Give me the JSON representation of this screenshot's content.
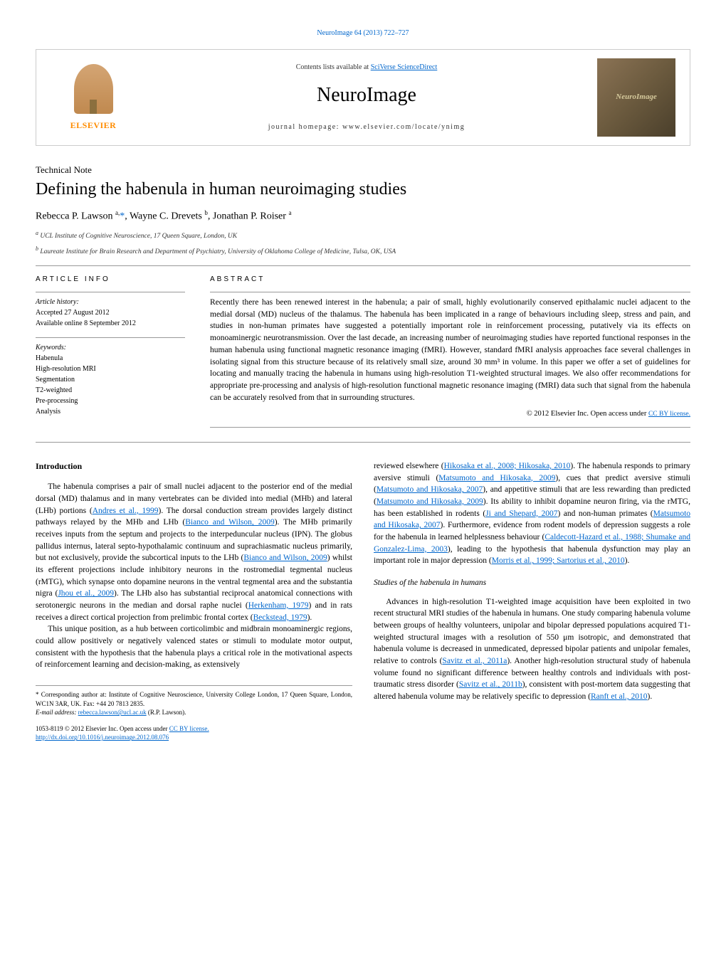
{
  "colors": {
    "link": "#0066cc",
    "text": "#000000",
    "bg": "#ffffff",
    "border": "#999999",
    "orange": "#ff8c00"
  },
  "header": {
    "citation": "NeuroImage 64 (2013) 722–727",
    "publisher_name": "ELSEVIER",
    "contents_line_prefix": "Contents lists available at ",
    "contents_line_link": "SciVerse ScienceDirect",
    "journal_title": "NeuroImage",
    "homepage_prefix": "journal homepage: ",
    "homepage_url": "www.elsevier.com/locate/ynimg",
    "cover_label": "NeuroImage"
  },
  "article": {
    "type": "Technical Note",
    "title": "Defining the habenula in human neuroimaging studies",
    "authors_html": "Rebecca P. Lawson <sup>a,</sup><span class='star'>*</span>, Wayne C. Drevets <sup>b</sup>, Jonathan P. Roiser <sup>a</sup>",
    "affiliations": [
      "a UCL Institute of Cognitive Neuroscience, 17 Queen Square, London, UK",
      "b Laureate Institute for Brain Research and Department of Psychiatry, University of Oklahoma College of Medicine, Tulsa, OK, USA"
    ]
  },
  "info": {
    "heading": "ARTICLE INFO",
    "history_label": "Article history:",
    "accepted": "Accepted 27 August 2012",
    "online": "Available online 8 September 2012",
    "keywords_label": "Keywords:",
    "keywords": [
      "Habenula",
      "High-resolution MRI",
      "Segmentation",
      "T2-weighted",
      "Pre-processing",
      "Analysis"
    ]
  },
  "abstract": {
    "heading": "ABSTRACT",
    "text": "Recently there has been renewed interest in the habenula; a pair of small, highly evolutionarily conserved epithalamic nuclei adjacent to the medial dorsal (MD) nucleus of the thalamus. The habenula has been implicated in a range of behaviours including sleep, stress and pain, and studies in non-human primates have suggested a potentially important role in reinforcement processing, putatively via its effects on monoaminergic neurotransmission. Over the last decade, an increasing number of neuroimaging studies have reported functional responses in the human habenula using functional magnetic resonance imaging (fMRI). However, standard fMRI analysis approaches face several challenges in isolating signal from this structure because of its relatively small size, around 30 mm³ in volume. In this paper we offer a set of guidelines for locating and manually tracing the habenula in humans using high-resolution T1-weighted structural images. We also offer recommendations for appropriate pre-processing and analysis of high-resolution functional magnetic resonance imaging (fMRI) data such that signal from the habenula can be accurately resolved from that in surrounding structures.",
    "copyright": "© 2012 Elsevier Inc.",
    "license_prefix": "Open access under ",
    "license_link": "CC BY license."
  },
  "body": {
    "intro_heading": "Introduction",
    "col1_p1_pre": "The habenula comprises a pair of small nuclei adjacent to the posterior end of the medial dorsal (MD) thalamus and in many vertebrates can be divided into medial (MHb) and lateral (LHb) portions (",
    "col1_p1_ref1": "Andres et al., 1999",
    "col1_p1_mid1": "). The dorsal conduction stream provides largely distinct pathways relayed by the MHb and LHb (",
    "col1_p1_ref2": "Bianco and Wilson, 2009",
    "col1_p1_mid2": "). The MHb primarily receives inputs from the septum and projects to the interpeduncular nucleus (IPN). The globus pallidus internus, lateral septo-hypothalamic continuum and suprachiasmatic nucleus primarily, but not exclusively, provide the subcortical inputs to the LHb (",
    "col1_p1_ref3": "Bianco and Wilson, 2009",
    "col1_p1_mid3": ") whilst its efferent projections include inhibitory neurons in the rostromedial tegmental nucleus (rMTG), which synapse onto dopamine neurons in the ventral tegmental area and the substantia nigra (",
    "col1_p1_ref4": "Jhou et al., 2009",
    "col1_p1_mid4": "). The LHb also has substantial reciprocal anatomical connections with serotonergic neurons in the median and dorsal raphe nuclei (",
    "col1_p1_ref5": "Herkenham, 1979",
    "col1_p1_mid5": ") and in rats receives a direct cortical projection from prelimbic frontal cortex (",
    "col1_p1_ref6": "Beckstead, 1979",
    "col1_p1_end": ").",
    "col1_p2": "This unique position, as a hub between corticolimbic and midbrain monoaminergic regions, could allow positively or negatively valenced states or stimuli to modulate motor output, consistent with the hypothesis that the habenula plays a critical role in the motivational aspects of reinforcement learning and decision-making, as extensively",
    "col2_p1_pre": "reviewed elsewhere (",
    "col2_p1_ref1": "Hikosaka et al., 2008; Hikosaka, 2010",
    "col2_p1_mid1": "). The habenula responds to primary aversive stimuli (",
    "col2_p1_ref2": "Matsumoto and Hikosaka, 2009",
    "col2_p1_mid2": "), cues that predict aversive stimuli (",
    "col2_p1_ref3": "Matsumoto and Hikosaka, 2007",
    "col2_p1_mid3": "), and appetitive stimuli that are less rewarding than predicted (",
    "col2_p1_ref4": "Matsumoto and Hikosaka, 2009",
    "col2_p1_mid4": "). Its ability to inhibit dopamine neuron firing, via the rMTG, has been established in rodents (",
    "col2_p1_ref5": "Ji and Shepard, 2007",
    "col2_p1_mid5": ") and non-human primates (",
    "col2_p1_ref6": "Matsumoto and Hikosaka, 2007",
    "col2_p1_mid6": "). Furthermore, evidence from rodent models of depression suggests a role for the habenula in learned helplessness behaviour (",
    "col2_p1_ref7": "Caldecott-Hazard et al., 1988; Shumake and Gonzalez-Lima, 2003",
    "col2_p1_mid7": "), leading to the hypothesis that habenula dysfunction may play an important role in major depression (",
    "col2_p1_ref8": "Morris et al., 1999; Sartorius et al., 2010",
    "col2_p1_end": ").",
    "studies_heading": "Studies of the habenula in humans",
    "col2_p2_pre": "Advances in high-resolution T1-weighted image acquisition have been exploited in two recent structural MRI studies of the habenula in humans. One study comparing habenula volume between groups of healthy volunteers, unipolar and bipolar depressed populations acquired T1-weighted structural images with a resolution of 550 μm isotropic, and demonstrated that habenula volume is decreased in unmedicated, depressed bipolar patients and unipolar females, relative to controls (",
    "col2_p2_ref1": "Savitz et al., 2011a",
    "col2_p2_mid1": "). Another high-resolution structural study of habenula volume found no significant difference between healthy controls and individuals with post-traumatic stress disorder (",
    "col2_p2_ref2": "Savitz et al., 2011b",
    "col2_p2_mid2": "), consistent with post-mortem data suggesting that altered habenula volume may be relatively specific to depression (",
    "col2_p2_ref3": "Ranft et al., 2010",
    "col2_p2_end": ")."
  },
  "footnotes": {
    "corresponding": "* Corresponding author at: Institute of Cognitive Neuroscience, University College London, 17 Queen Square, London, WC1N 3AR, UK. Fax: +44 20 7813 2835.",
    "email_label": "E-mail address: ",
    "email": "rebecca.lawson@ucl.ac.uk",
    "email_suffix": " (R.P. Lawson)."
  },
  "bottom": {
    "line1_prefix": "1053-8119 © 2012 Elsevier Inc. ",
    "line1_link_prefix": "Open access under ",
    "line1_link": "CC BY license.",
    "doi": "http://dx.doi.org/10.1016/j.neuroimage.2012.08.076"
  }
}
